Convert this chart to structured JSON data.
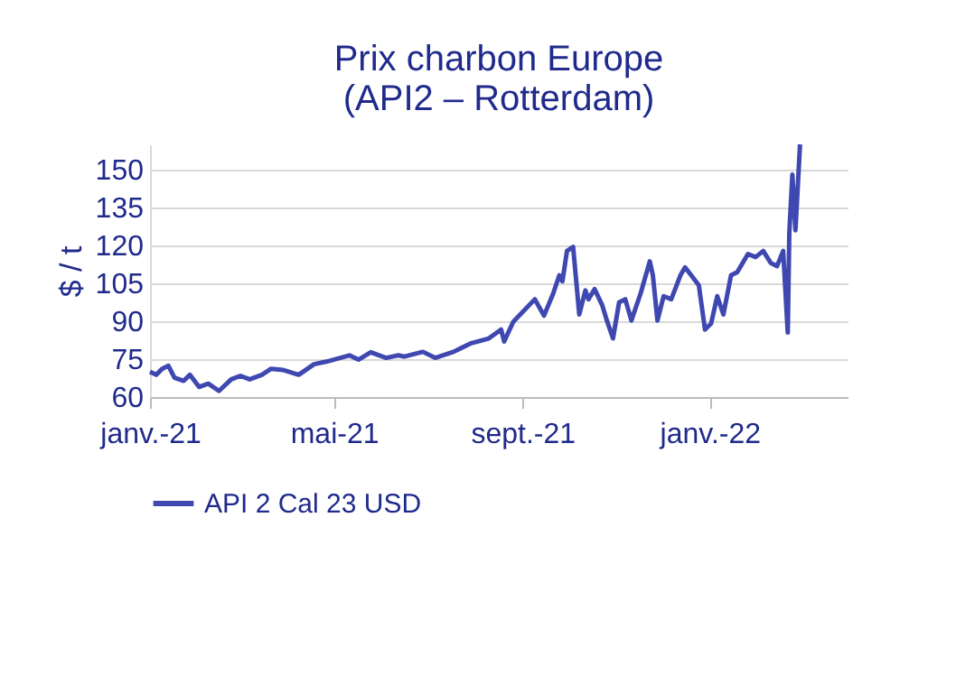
{
  "chart_data": {
    "type": "line",
    "title": "Prix charbon Europe\n(API2 – Rotterdam)",
    "ylabel": "$ / t",
    "x": [
      "2021-01-01",
      "2021-01-05",
      "2021-01-09",
      "2021-01-13",
      "2021-01-17",
      "2021-01-23",
      "2021-01-27",
      "2021-02-02",
      "2021-02-08",
      "2021-02-15",
      "2021-02-23",
      "2021-03-01",
      "2021-03-07",
      "2021-03-15",
      "2021-03-21",
      "2021-03-29",
      "2021-04-08",
      "2021-04-18",
      "2021-04-26",
      "2021-05-04",
      "2021-05-11",
      "2021-05-17",
      "2021-05-25",
      "2021-06-04",
      "2021-06-12",
      "2021-06-16",
      "2021-06-28",
      "2021-07-06",
      "2021-07-18",
      "2021-07-29",
      "2021-08-10",
      "2021-08-18",
      "2021-08-20",
      "2021-08-26",
      "2021-09-09",
      "2021-09-15",
      "2021-09-21",
      "2021-09-25",
      "2021-09-27",
      "2021-09-30",
      "2021-10-04",
      "2021-10-08",
      "2021-10-12",
      "2021-10-14",
      "2021-10-18",
      "2021-10-23",
      "2021-10-26",
      "2021-10-30",
      "2021-11-03",
      "2021-11-07",
      "2021-11-11",
      "2021-11-17",
      "2021-11-23",
      "2021-11-25",
      "2021-11-28",
      "2021-12-02",
      "2021-12-07",
      "2021-12-13",
      "2021-12-16",
      "2021-12-20",
      "2021-12-25",
      "2021-12-29",
      "2022-01-02",
      "2022-01-06",
      "2022-01-10",
      "2022-01-15",
      "2022-01-19",
      "2022-01-26",
      "2022-01-31",
      "2022-02-05",
      "2022-02-10",
      "2022-02-14",
      "2022-02-18",
      "2022-02-21",
      "2022-02-22",
      "2022-02-24",
      "2022-02-26",
      "2022-03-01"
    ],
    "series": [
      {
        "name": "API 2 Cal 23 USD",
        "color": "#3f48b0",
        "values": [
          70,
          68.8,
          71.2,
          72.4,
          67.6,
          66.4,
          68.8,
          64,
          65.3,
          62.4,
          67,
          68.4,
          67,
          68.8,
          71.2,
          70.7,
          68.8,
          73,
          74,
          75.3,
          76.5,
          74.8,
          77.7,
          75.5,
          76.5,
          76,
          77.9,
          75.5,
          77.9,
          81.2,
          83.2,
          86.7,
          82,
          89.8,
          98.7,
          92.2,
          101,
          108.2,
          105.8,
          117.8,
          119.4,
          92.7,
          102.2,
          98.7,
          102.7,
          96.3,
          90.3,
          83.2,
          97.5,
          98.7,
          90.3,
          101,
          113.7,
          108.2,
          90.3,
          99.9,
          98.7,
          108.2,
          111.3,
          108.2,
          104.2,
          86.7,
          89.1,
          99.9,
          92.7,
          108.2,
          109.4,
          116.6,
          115.4,
          117.8,
          113,
          111.8,
          117.8,
          85.5,
          124.9,
          148,
          126,
          160
        ]
      }
    ],
    "xlim": [
      "2021-01-01",
      "2022-04-01"
    ],
    "xticks": [
      {
        "value": "2021-01-01",
        "label": "janv.-21"
      },
      {
        "value": "2021-05-01",
        "label": "mai-21"
      },
      {
        "value": "2021-09-01",
        "label": "sept.-21"
      },
      {
        "value": "2022-01-01",
        "label": "janv.-22"
      }
    ],
    "ylim": [
      60,
      160
    ],
    "yticks": [
      60,
      75,
      90,
      105,
      120,
      135,
      150
    ],
    "grid": "y",
    "legend": "bottom"
  }
}
